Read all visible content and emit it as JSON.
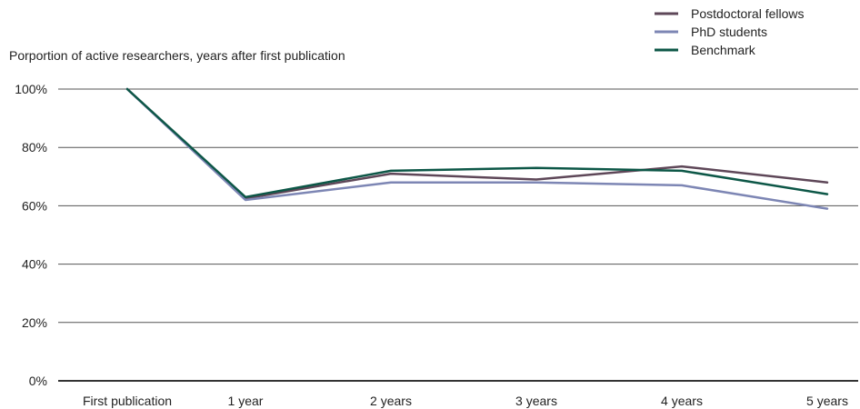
{
  "chart_data": {
    "type": "line",
    "title": "",
    "ylabel": "Porportion of active researchers, years after first publication",
    "xlabel": "",
    "categories": [
      "First publication",
      "1 year",
      "2 years",
      "3 years",
      "4 years",
      "5 years"
    ],
    "ylim": [
      0,
      100
    ],
    "yticks": [
      0,
      20,
      40,
      60,
      80,
      100
    ],
    "ytick_labels": [
      "0%",
      "20%",
      "40%",
      "60%",
      "80%",
      "100%"
    ],
    "grid": true,
    "legend_position": "top-right",
    "series": [
      {
        "name": "Postdoctoral fellows",
        "color": "#5e4758",
        "values": [
          100,
          62.5,
          71,
          69,
          73.5,
          68
        ]
      },
      {
        "name": "PhD students",
        "color": "#7d86b4",
        "values": [
          100,
          62,
          68,
          68,
          67,
          59
        ]
      },
      {
        "name": "Benchmark",
        "color": "#0d5747",
        "values": [
          100,
          63,
          72,
          73,
          72,
          64
        ]
      }
    ]
  }
}
